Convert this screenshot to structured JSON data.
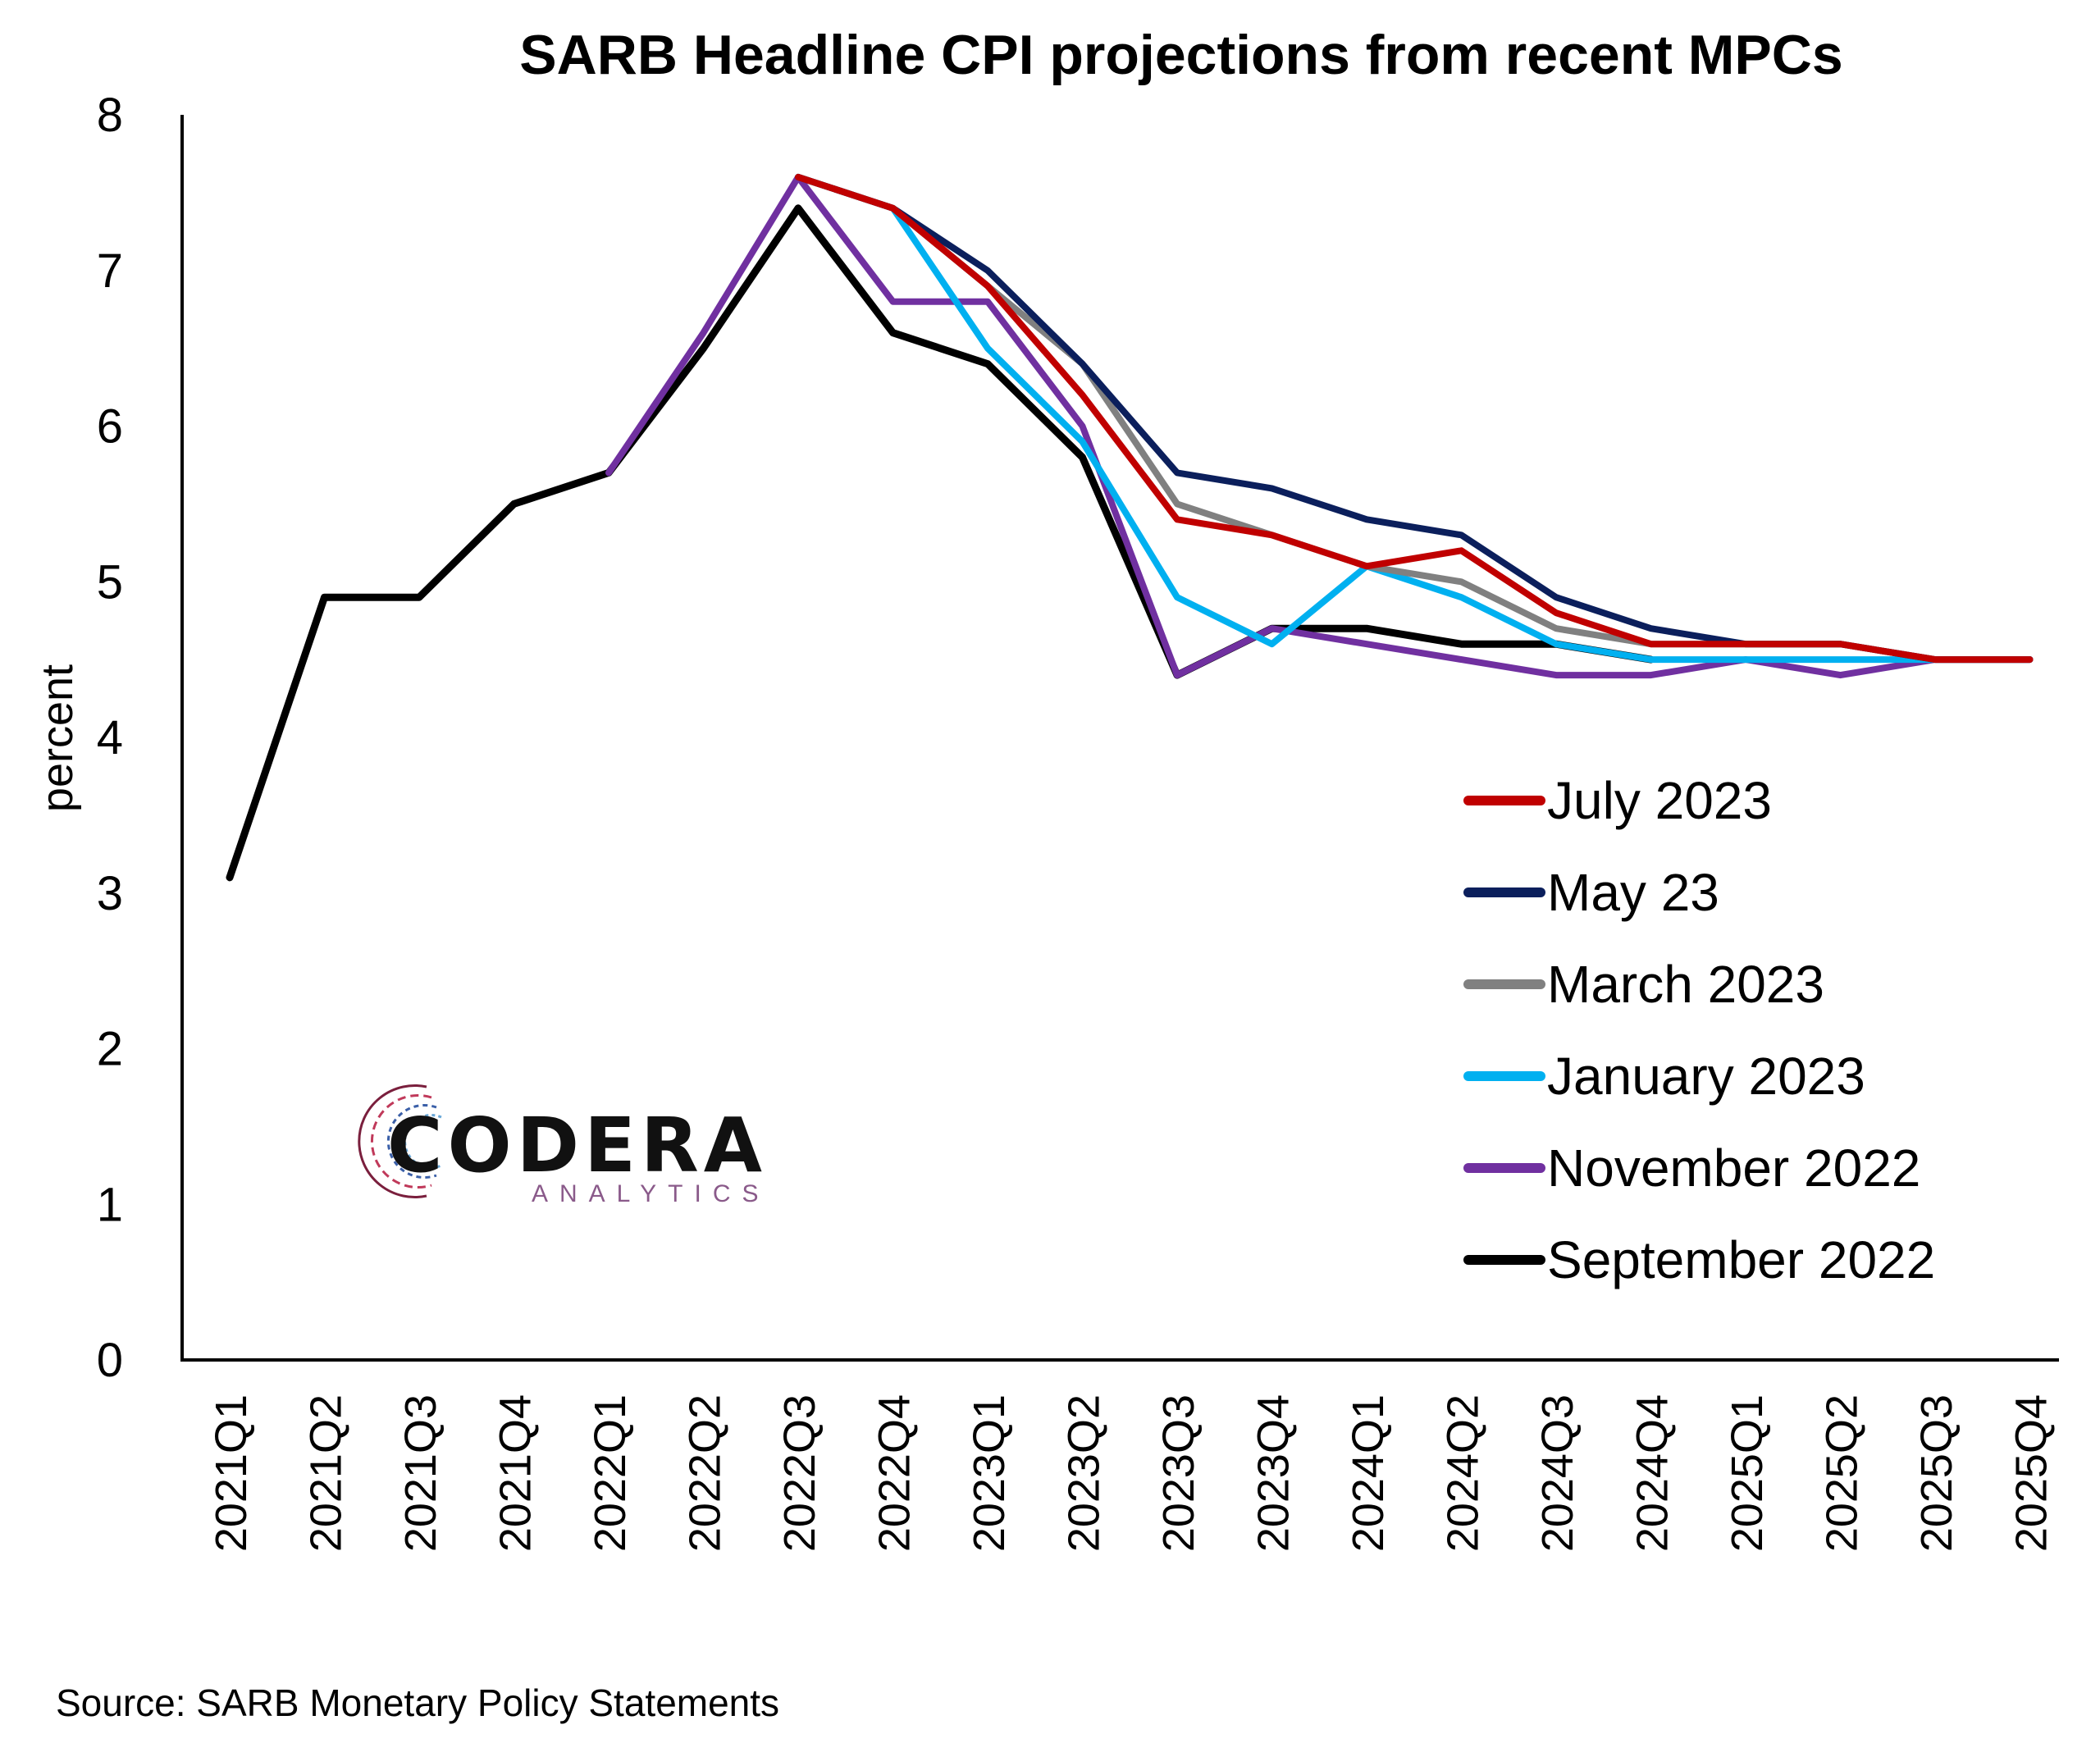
{
  "chart_data": {
    "type": "line",
    "title": "SARB Headline CPI projections from recent MPCs",
    "xlabel": "",
    "ylabel": "percent",
    "ylim": [
      0,
      8
    ],
    "yticks": [
      0,
      1,
      2,
      3,
      4,
      5,
      6,
      7,
      8
    ],
    "grid": false,
    "legend_position": "right",
    "categories": [
      "2021Q1",
      "2021Q2",
      "2021Q3",
      "2021Q4",
      "2022Q1",
      "2022Q2",
      "2022Q3",
      "2022Q4",
      "2023Q1",
      "2023Q2",
      "2023Q3",
      "2023Q4",
      "2024Q1",
      "2024Q2",
      "2024Q3",
      "2024Q4",
      "2025Q1",
      "2025Q2",
      "2025Q3",
      "2025Q4"
    ],
    "series": [
      {
        "name": "July 2023",
        "color": "#C00000",
        "values": [
          null,
          null,
          null,
          null,
          null,
          null,
          7.6,
          7.4,
          6.9,
          6.2,
          5.4,
          5.3,
          5.1,
          5.2,
          4.8,
          4.6,
          4.6,
          4.6,
          4.5,
          4.5
        ]
      },
      {
        "name": "May 23",
        "color": "#0B1F5C",
        "values": [
          null,
          null,
          null,
          null,
          null,
          null,
          7.6,
          7.4,
          7.0,
          6.4,
          5.7,
          5.6,
          5.4,
          5.3,
          4.9,
          4.7,
          4.6,
          4.6,
          4.5,
          4.5
        ]
      },
      {
        "name": "March 2023",
        "color": "#808080",
        "values": [
          null,
          null,
          null,
          null,
          null,
          null,
          7.6,
          7.4,
          6.9,
          6.4,
          5.5,
          5.3,
          5.1,
          5.0,
          4.7,
          4.6,
          4.6,
          4.6,
          4.5,
          4.5
        ]
      },
      {
        "name": "January 2023",
        "color": "#00B0F0",
        "values": [
          null,
          null,
          null,
          null,
          null,
          null,
          7.6,
          7.4,
          6.5,
          5.9,
          4.9,
          4.6,
          5.1,
          4.9,
          4.6,
          4.5,
          4.5,
          4.5,
          4.5,
          4.5
        ]
      },
      {
        "name": "November 2022",
        "color": "#7030A0",
        "values": [
          null,
          null,
          null,
          null,
          5.7,
          6.6,
          7.6,
          6.8,
          6.8,
          6.0,
          4.4,
          4.7,
          4.6,
          4.5,
          4.4,
          4.4,
          4.5,
          4.4,
          4.5,
          4.5
        ]
      },
      {
        "name": "September 2022",
        "color": "#000000",
        "values": [
          3.1,
          4.9,
          4.9,
          5.5,
          5.7,
          6.5,
          7.4,
          6.6,
          6.4,
          5.8,
          4.4,
          4.7,
          4.7,
          4.6,
          4.6,
          4.5,
          null,
          null,
          null,
          null
        ]
      }
    ]
  },
  "logo": {
    "name": "CODERA",
    "subtitle": "ANALYTICS"
  },
  "source": "Source: SARB Monetary Policy Statements"
}
